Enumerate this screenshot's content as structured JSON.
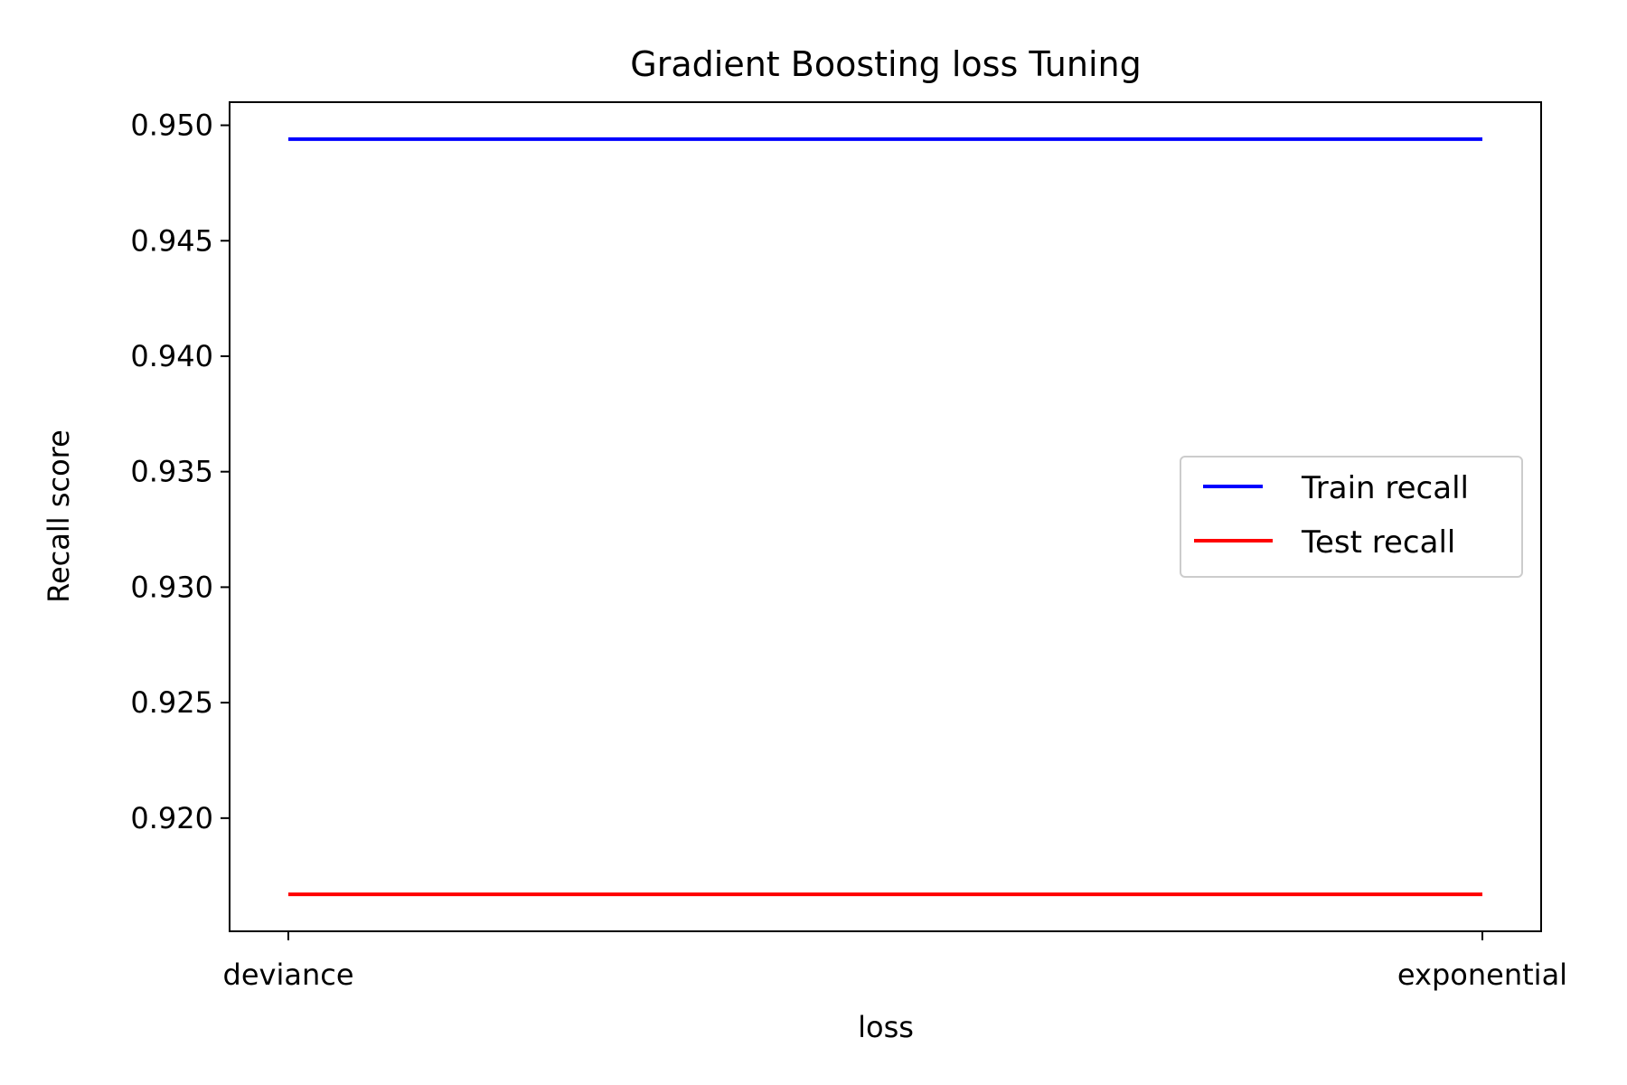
{
  "chart_data": {
    "type": "line",
    "title": "Gradient Boosting loss Tuning",
    "xlabel": "loss",
    "ylabel": "Recall score",
    "categories": [
      "deviance",
      "exponential"
    ],
    "ylim": [
      0.9151,
      0.951
    ],
    "yticks": [
      0.92,
      0.925,
      0.93,
      0.935,
      0.94,
      0.945,
      0.95
    ],
    "ytick_labels": [
      "0.920",
      "0.925",
      "0.930",
      "0.935",
      "0.940",
      "0.945",
      "0.950"
    ],
    "grid": false,
    "legend_position": "center-right",
    "series": [
      {
        "name": "Train recall",
        "color": "#0000ff",
        "values": [
          0.9494,
          0.9494
        ]
      },
      {
        "name": "Test recall",
        "color": "#ff0000",
        "values": [
          0.9167,
          0.9167
        ]
      }
    ]
  }
}
